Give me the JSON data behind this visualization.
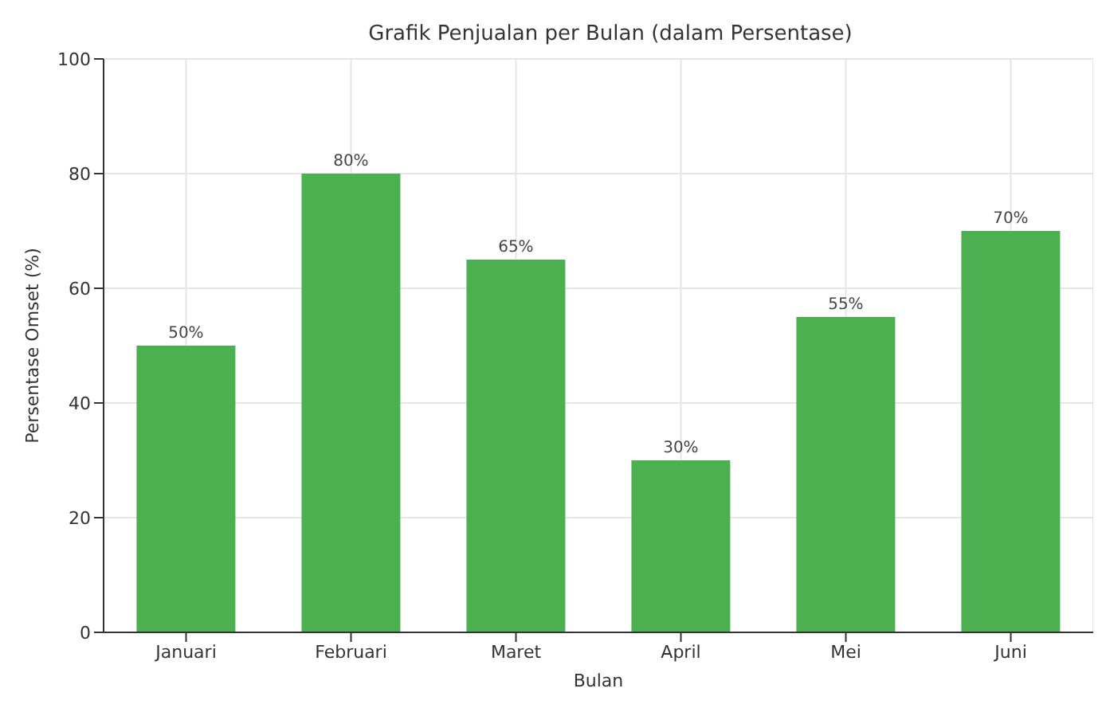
{
  "chart_data": {
    "type": "bar",
    "title": "Grafik Penjualan per Bulan (dalam Persentase)",
    "xlabel": "Bulan",
    "ylabel": "Persentase Omset (%)",
    "categories": [
      "Januari",
      "Februari",
      "Maret",
      "April",
      "Mei",
      "Juni"
    ],
    "values": [
      50,
      80,
      65,
      30,
      55,
      70
    ],
    "value_labels": [
      "50%",
      "80%",
      "65%",
      "30%",
      "55%",
      "70%"
    ],
    "color": "#4caf50",
    "ylim": [
      0,
      100
    ],
    "yticks": [
      0,
      20,
      40,
      60,
      80,
      100
    ],
    "grid": true
  }
}
